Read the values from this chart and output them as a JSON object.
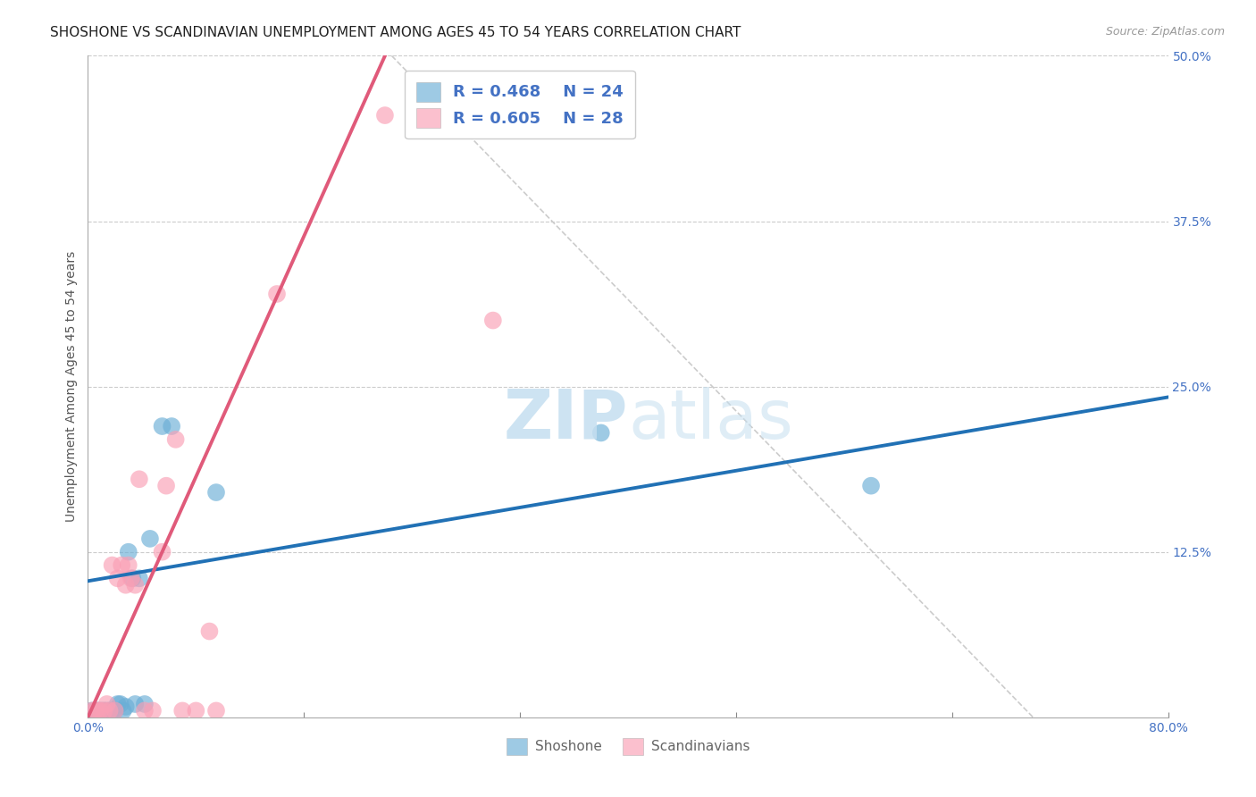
{
  "title": "SHOSHONE VS SCANDINAVIAN UNEMPLOYMENT AMONG AGES 45 TO 54 YEARS CORRELATION CHART",
  "source": "Source: ZipAtlas.com",
  "xlabel": "",
  "ylabel": "Unemployment Among Ages 45 to 54 years",
  "xlim": [
    0.0,
    0.8
  ],
  "ylim": [
    0.0,
    0.5
  ],
  "xticks": [
    0.0,
    0.16,
    0.32,
    0.48,
    0.64,
    0.8
  ],
  "xticklabels": [
    "0.0%",
    "",
    "",
    "",
    "",
    "80.0%"
  ],
  "yticks": [
    0.0,
    0.125,
    0.25,
    0.375,
    0.5
  ],
  "yticklabels": [
    "",
    "12.5%",
    "25.0%",
    "37.5%",
    "50.0%"
  ],
  "grid_color": "#cccccc",
  "background_color": "#ffffff",
  "shoshone_color": "#6baed6",
  "scandinavian_color": "#fa9fb5",
  "shoshone_line_color": "#2171b5",
  "scandinavian_line_color": "#e05a7a",
  "dashed_line_color": "#cccccc",
  "legend_R_shoshone": "R = 0.468",
  "legend_N_shoshone": "N = 24",
  "legend_R_scandinavian": "R = 0.605",
  "legend_N_scandinavian": "N = 28",
  "watermark_zip": "ZIP",
  "watermark_atlas": "atlas",
  "shoshone_x": [
    0.003,
    0.006,
    0.008,
    0.01,
    0.012,
    0.014,
    0.016,
    0.018,
    0.02,
    0.022,
    0.024,
    0.026,
    0.028,
    0.03,
    0.033,
    0.035,
    0.038,
    0.042,
    0.046,
    0.055,
    0.062,
    0.095,
    0.38,
    0.58
  ],
  "shoshone_y": [
    0.005,
    0.005,
    0.005,
    0.005,
    0.005,
    0.005,
    0.005,
    0.005,
    0.005,
    0.01,
    0.01,
    0.005,
    0.008,
    0.125,
    0.105,
    0.01,
    0.105,
    0.01,
    0.135,
    0.22,
    0.22,
    0.17,
    0.215,
    0.175
  ],
  "scandinavian_x": [
    0.003,
    0.005,
    0.007,
    0.009,
    0.012,
    0.014,
    0.016,
    0.018,
    0.02,
    0.022,
    0.025,
    0.028,
    0.03,
    0.032,
    0.035,
    0.038,
    0.042,
    0.048,
    0.055,
    0.058,
    0.065,
    0.07,
    0.08,
    0.09,
    0.095,
    0.14,
    0.22,
    0.3
  ],
  "scandinavian_y": [
    0.005,
    0.005,
    0.005,
    0.005,
    0.005,
    0.01,
    0.005,
    0.115,
    0.005,
    0.105,
    0.115,
    0.1,
    0.115,
    0.105,
    0.1,
    0.18,
    0.005,
    0.005,
    0.125,
    0.175,
    0.21,
    0.005,
    0.005,
    0.065,
    0.005,
    0.32,
    0.455,
    0.3
  ],
  "shoshone_line": {
    "x0": 0.0,
    "y0": 0.103,
    "x1": 0.8,
    "y1": 0.242
  },
  "scandinavian_line": {
    "x0": 0.0,
    "y0": 0.0,
    "x1": 0.22,
    "y1": 0.5
  },
  "dashed_line": {
    "x0": 0.225,
    "y0": 0.5,
    "x1": 0.7,
    "y1": 0.0
  },
  "title_fontsize": 11,
  "axis_label_fontsize": 10,
  "tick_fontsize": 10,
  "legend_fontsize": 13,
  "watermark_fontsize": 55,
  "source_fontsize": 9
}
